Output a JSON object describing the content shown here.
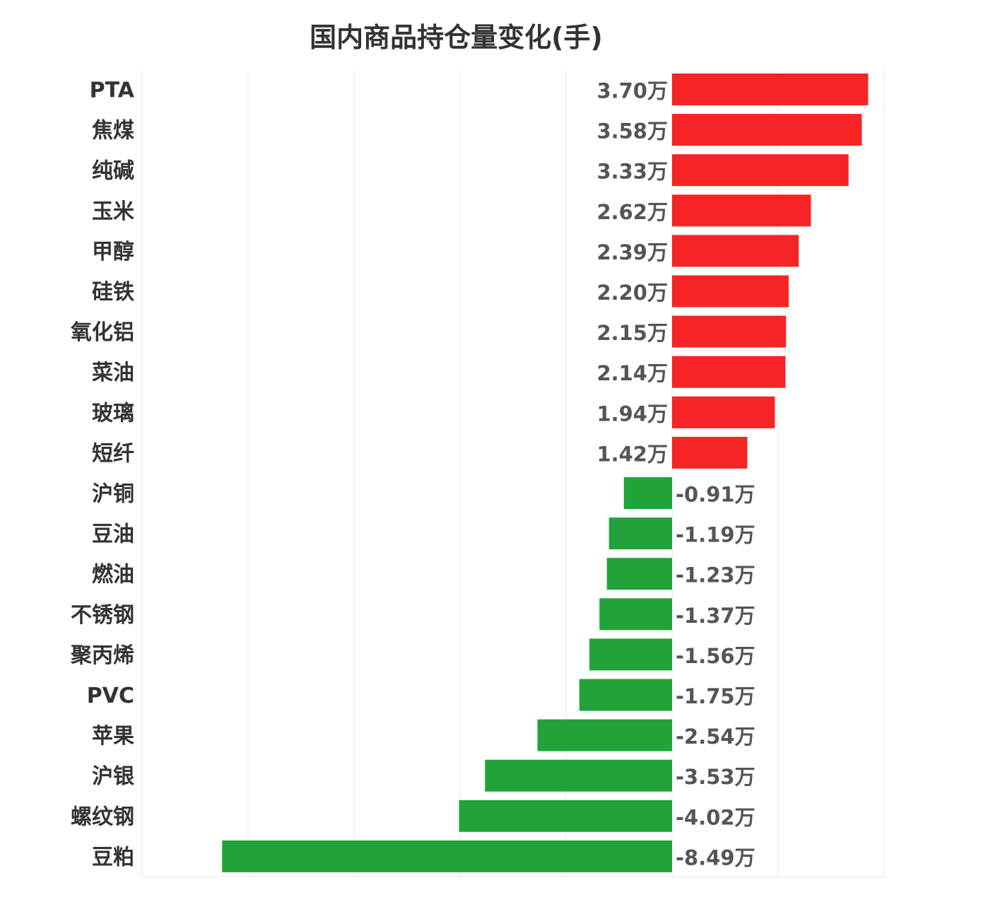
{
  "chart_data": {
    "type": "bar",
    "orientation": "horizontal",
    "title": "国内商品持仓量变化(手)",
    "xlabel": "",
    "ylabel": "",
    "unit_suffix": "万",
    "xlim": [
      -10,
      2
    ],
    "categories": [
      "PTA",
      "焦煤",
      "纯碱",
      "玉米",
      "甲醇",
      "硅铁",
      "氧化铝",
      "菜油",
      "玻璃",
      "短纤",
      "沪铜",
      "豆油",
      "燃油",
      "不锈钢",
      "聚丙烯",
      "PVC",
      "苹果",
      "沪银",
      "螺纹钢",
      "豆粕"
    ],
    "values": [
      3.7,
      3.58,
      3.33,
      2.62,
      2.39,
      2.2,
      2.15,
      2.14,
      1.94,
      1.42,
      -0.91,
      -1.19,
      -1.23,
      -1.37,
      -1.56,
      -1.75,
      -2.54,
      -3.53,
      -4.02,
      -8.49
    ],
    "value_labels": [
      "3.70万",
      "3.58万",
      "3.33万",
      "2.62万",
      "2.39万",
      "2.20万",
      "2.15万",
      "2.14万",
      "1.94万",
      "1.42万",
      "-0.91万",
      "-1.19万",
      "-1.23万",
      "-1.37万",
      "-1.56万",
      "-1.75万",
      "-2.54万",
      "-3.53万",
      "-4.02万",
      "-8.49万"
    ],
    "grid": true,
    "colors": {
      "positive": "#f62424",
      "negative": "#22a33a",
      "grid": "#e6e6e6",
      "category_text": "#333333",
      "value_text": "#555555"
    }
  }
}
